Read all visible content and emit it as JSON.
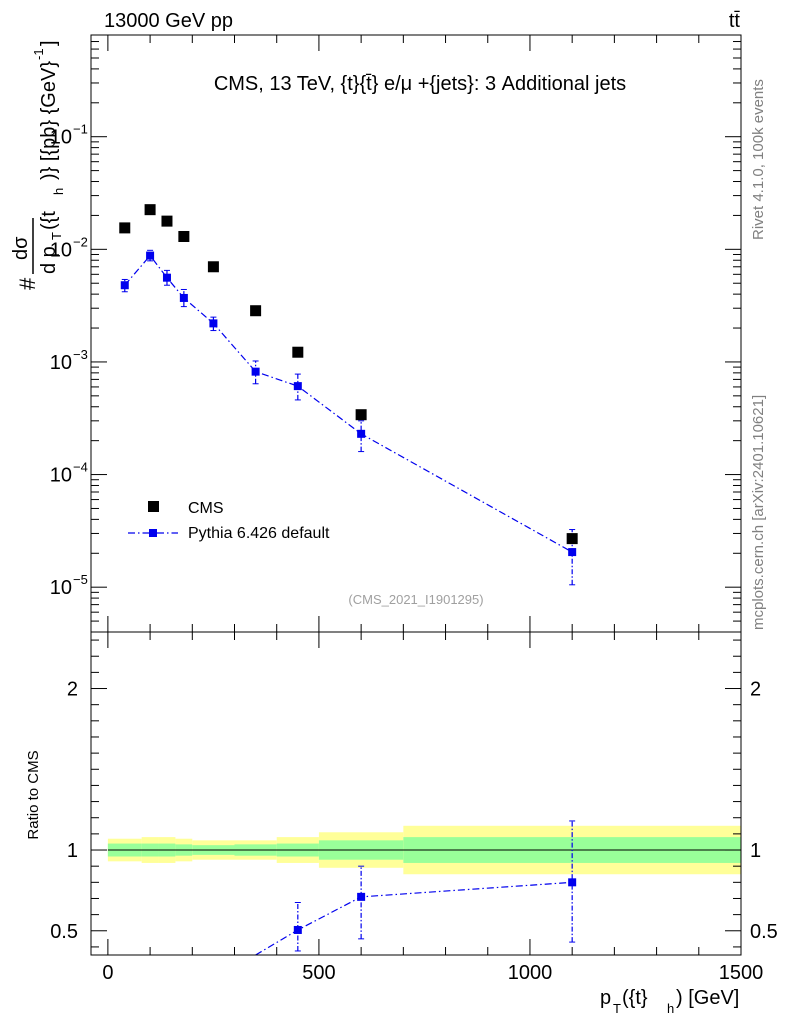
{
  "header": {
    "left": "13000 GeV pp",
    "right": "tt̄"
  },
  "side_labels": {
    "rivet": "Rivet 4.1.0,  100k events",
    "mcplots": "mcplots.cern.ch [arXiv:2401.10621]"
  },
  "chart_data": [
    {
      "type": "scatter",
      "title": "CMS, 13 TeV, {t}{t̄} e/μ +{jets}: 3 Additional jets",
      "ylabel_parts": {
        "hash": "#",
        "dsigma": "dσ",
        "dpt": "d p",
        "subT": "T",
        "ptArg": "({t",
        "subh": "h",
        "tail": ")} [{pb} {GeV}",
        "sup": "-1",
        "close": "]"
      },
      "xscale": "linear",
      "yscale": "log",
      "xlim": [
        -40,
        1500
      ],
      "ylim": [
        4e-06,
        0.8
      ],
      "ytick_labels": [
        {
          "mant": "10",
          "exp": "−1",
          "value": 0.1
        },
        {
          "mant": "10",
          "exp": "−2",
          "value": 0.01
        },
        {
          "mant": "10",
          "exp": "−3",
          "value": 0.001
        },
        {
          "mant": "10",
          "exp": "−4",
          "value": 0.0001
        },
        {
          "mant": "10",
          "exp": "−5",
          "value": 1e-05
        }
      ],
      "watermark": "(CMS_2021_I1901295)",
      "legend": [
        {
          "name": "CMS",
          "style": "black-square"
        },
        {
          "name": "Pythia 6.426 default",
          "style": "blue-dashdot-square"
        }
      ],
      "legend_position": "lower-left",
      "series": [
        {
          "name": "CMS",
          "color": "#000000",
          "x": [
            40,
            100,
            140,
            180,
            250,
            350,
            450,
            600,
            1100
          ],
          "y": [
            0.0155,
            0.0225,
            0.0178,
            0.013,
            0.007,
            0.00285,
            0.00122,
            0.00034,
            2.7e-05
          ]
        },
        {
          "name": "Pythia 6.426 default",
          "color": "#0000ee",
          "x": [
            40,
            100,
            140,
            180,
            250,
            350,
            450,
            600,
            1100
          ],
          "y": [
            0.0048,
            0.0088,
            0.0056,
            0.0037,
            0.0022,
            0.00082,
            0.00061,
            0.00023,
            2.05e-05
          ],
          "yerr_low": [
            0.0006,
            0.0009,
            0.0008,
            0.0006,
            0.0003,
            0.00018,
            0.00015,
            7e-05,
            1e-05
          ],
          "yerr_high": [
            0.0006,
            0.001,
            0.0009,
            0.0007,
            0.0003,
            0.0002,
            0.00017,
            7e-05,
            1.2e-05
          ]
        }
      ]
    },
    {
      "type": "line",
      "ylabel": "Ratio to CMS",
      "xlabel_parts": {
        "main": "p",
        "subT": "T",
        "arg": "({t}",
        "subh": "h",
        "tail": ") [GeV]"
      },
      "xlim": [
        -40,
        1500
      ],
      "ylim": [
        0.35,
        2.35
      ],
      "xtick_labels": [
        "0",
        "500",
        "1000",
        "1500"
      ],
      "xtick_values": [
        0,
        500,
        1000,
        1500
      ],
      "ytick_labels": [
        "0.5",
        "1",
        "2"
      ],
      "ytick_values": [
        0.5,
        1,
        2
      ],
      "reference_line": 1,
      "bands": [
        {
          "xlo": 0,
          "xhi": 80,
          "total": [
            0.93,
            1.07
          ],
          "stat": [
            0.96,
            1.04
          ]
        },
        {
          "xlo": 80,
          "xhi": 120,
          "total": [
            0.92,
            1.08
          ],
          "stat": [
            0.96,
            1.04
          ]
        },
        {
          "xlo": 120,
          "xhi": 160,
          "total": [
            0.92,
            1.08
          ],
          "stat": [
            0.96,
            1.04
          ]
        },
        {
          "xlo": 160,
          "xhi": 200,
          "total": [
            0.93,
            1.07
          ],
          "stat": [
            0.965,
            1.035
          ]
        },
        {
          "xlo": 200,
          "xhi": 300,
          "total": [
            0.94,
            1.06
          ],
          "stat": [
            0.97,
            1.03
          ]
        },
        {
          "xlo": 300,
          "xhi": 400,
          "total": [
            0.94,
            1.06
          ],
          "stat": [
            0.965,
            1.035
          ]
        },
        {
          "xlo": 400,
          "xhi": 500,
          "total": [
            0.92,
            1.08
          ],
          "stat": [
            0.96,
            1.04
          ]
        },
        {
          "xlo": 500,
          "xhi": 700,
          "total": [
            0.89,
            1.11
          ],
          "stat": [
            0.94,
            1.06
          ]
        },
        {
          "xlo": 700,
          "xhi": 1500,
          "total": [
            0.85,
            1.15
          ],
          "stat": [
            0.92,
            1.08
          ]
        }
      ],
      "series": [
        {
          "name": "Pythia 6.426 default",
          "color": "#0000ee",
          "x": [
            350,
            450,
            600,
            1100
          ],
          "y": [
            0.29,
            0.505,
            0.71,
            0.8
          ],
          "yerr_low": [
            0.06,
            0.13,
            0.26,
            0.37
          ],
          "yerr_high": [
            0.06,
            0.17,
            0.19,
            0.38
          ]
        }
      ]
    }
  ]
}
